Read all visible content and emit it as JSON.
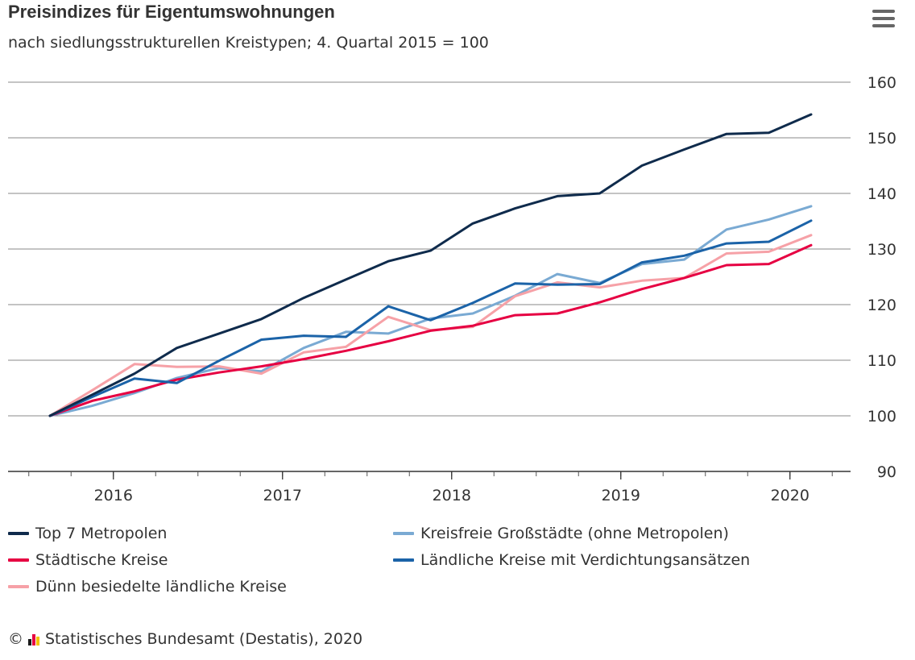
{
  "chart_data": {
    "type": "line",
    "title": "Preisindizes für Eigentumswohnungen",
    "subtitle": "nach siedlungsstrukturellen Kreistypen; 4. Quartal 2015 = 100",
    "x": [
      "2015-Q4",
      "2016-Q1",
      "2016-Q2",
      "2016-Q3",
      "2016-Q4",
      "2017-Q1",
      "2017-Q2",
      "2017-Q3",
      "2017-Q4",
      "2018-Q1",
      "2018-Q2",
      "2018-Q3",
      "2018-Q4",
      "2019-Q1",
      "2019-Q2",
      "2019-Q3",
      "2019-Q4",
      "2020-Q1",
      "2020-Q2"
    ],
    "x_tick_labels": [
      "2016",
      "2017",
      "2018",
      "2019",
      "2020"
    ],
    "ylim": [
      90,
      160
    ],
    "y_ticks": [
      90,
      100,
      110,
      120,
      130,
      140,
      150,
      160
    ],
    "series": [
      {
        "name": "Top 7 Metropolen",
        "color": "#0f2b4c",
        "values": [
          100.0,
          103.8,
          107.6,
          112.2,
          114.8,
          117.4,
          121.2,
          124.5,
          127.8,
          129.7,
          134.6,
          137.3,
          139.5,
          140.0,
          145.0,
          147.9,
          150.7,
          150.9,
          154.2
        ]
      },
      {
        "name": "Kreisfreie Großstädte (ohne Metropolen)",
        "color": "#7aaad3",
        "values": [
          100.0,
          101.8,
          104.1,
          106.8,
          108.6,
          108.0,
          112.2,
          115.1,
          114.8,
          117.5,
          118.4,
          121.6,
          125.5,
          123.9,
          127.3,
          128.1,
          133.5,
          135.3,
          137.7
        ]
      },
      {
        "name": "Städtische Kreise",
        "color": "#e60042",
        "values": [
          100.0,
          102.7,
          104.4,
          106.5,
          107.8,
          108.9,
          110.2,
          111.7,
          113.4,
          115.3,
          116.2,
          118.1,
          118.4,
          120.4,
          122.8,
          124.8,
          127.1,
          127.3,
          130.7
        ]
      },
      {
        "name": "Ländliche Kreise mit Verdichtungsansätzen",
        "color": "#1b63a8",
        "values": [
          100.0,
          103.4,
          106.7,
          105.9,
          109.9,
          113.7,
          114.4,
          114.2,
          119.7,
          117.2,
          120.3,
          123.8,
          123.6,
          123.7,
          127.6,
          128.8,
          131.0,
          131.3,
          135.1
        ]
      },
      {
        "name": "Dünn besiedelte ländliche Kreise",
        "color": "#f6a1a7",
        "values": [
          100.0,
          104.6,
          109.3,
          108.8,
          108.9,
          107.6,
          111.4,
          112.4,
          117.8,
          115.4,
          116.0,
          121.5,
          124.0,
          123.1,
          124.3,
          124.8,
          129.2,
          129.5,
          132.5
        ]
      }
    ],
    "grid": true,
    "legend_position": "bottom"
  },
  "credits": {
    "copyright_symbol": "©",
    "text": "Statistisches Bundesamt (Destatis), 2020",
    "logo_colors": [
      "#1a1a1a",
      "#e60042",
      "#f2c200"
    ]
  },
  "menu_icon": "hamburger-menu-icon"
}
